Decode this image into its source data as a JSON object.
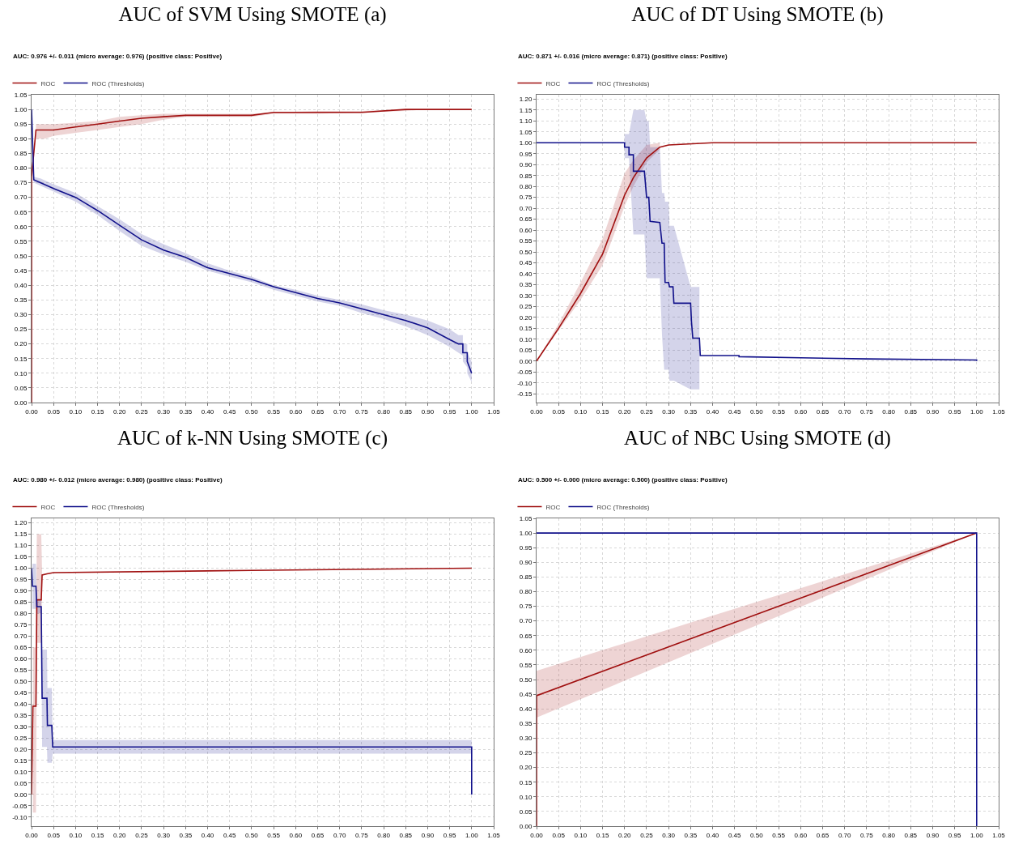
{
  "chart_data": [
    {
      "type": "line",
      "title": "AUC of SVM Using SMOTE (a)",
      "subtitle": "AUC: 0.976 +/- 0.011 (micro average: 0.976) (positive class: Positive)",
      "grid": true,
      "legend": "top left",
      "marker": "none",
      "line_style": "solid",
      "xlim": [
        0,
        1.05
      ],
      "ylim": [
        0,
        1.05
      ],
      "xticks": [
        {
          "value": 0,
          "label": "0.00"
        },
        {
          "value": 0.05,
          "label": "0.05"
        },
        {
          "value": 0.1,
          "label": "0.10"
        },
        {
          "value": 0.15,
          "label": "0.15"
        },
        {
          "value": 0.2,
          "label": "0.20"
        },
        {
          "value": 0.25,
          "label": "0.25"
        },
        {
          "value": 0.3,
          "label": "0.30"
        },
        {
          "value": 0.35,
          "label": "0.35"
        },
        {
          "value": 0.4,
          "label": "0.40"
        },
        {
          "value": 0.45,
          "label": "0.45"
        },
        {
          "value": 0.5,
          "label": "0.50"
        },
        {
          "value": 0.55,
          "label": "0.55"
        },
        {
          "value": 0.6,
          "label": "0.60"
        },
        {
          "value": 0.65,
          "label": "0.65"
        },
        {
          "value": 0.7,
          "label": "0.70"
        },
        {
          "value": 0.75,
          "label": "0.75"
        },
        {
          "value": 0.8,
          "label": "0.80"
        },
        {
          "value": 0.85,
          "label": "0.85"
        },
        {
          "value": 0.9,
          "label": "0.90"
        },
        {
          "value": 0.95,
          "label": "0.95"
        },
        {
          "value": 1,
          "label": "1.00"
        },
        {
          "value": 1.05,
          "label": "1.05"
        }
      ],
      "yticks": [
        {
          "value": 0,
          "label": "0.00"
        },
        {
          "value": 0.05,
          "label": "0.05"
        },
        {
          "value": 0.1,
          "label": "0.10"
        },
        {
          "value": 0.15,
          "label": "0.15"
        },
        {
          "value": 0.2,
          "label": "0.20"
        },
        {
          "value": 0.25,
          "label": "0.25"
        },
        {
          "value": 0.3,
          "label": "0.30"
        },
        {
          "value": 0.35,
          "label": "0.35"
        },
        {
          "value": 0.4,
          "label": "0.40"
        },
        {
          "value": 0.45,
          "label": "0.45"
        },
        {
          "value": 0.5,
          "label": "0.50"
        },
        {
          "value": 0.55,
          "label": "0.55"
        },
        {
          "value": 0.6,
          "label": "0.60"
        },
        {
          "value": 0.65,
          "label": "0.65"
        },
        {
          "value": 0.7,
          "label": "0.70"
        },
        {
          "value": 0.75,
          "label": "0.75"
        },
        {
          "value": 0.8,
          "label": "0.80"
        },
        {
          "value": 0.85,
          "label": "0.85"
        },
        {
          "value": 0.9,
          "label": "0.90"
        },
        {
          "value": 0.95,
          "label": "0.95"
        },
        {
          "value": 1,
          "label": "1.00"
        },
        {
          "value": 1.05,
          "label": "1.05"
        }
      ],
      "series": [
        {
          "name": "ROC",
          "color": "#a01010",
          "x": [
            0,
            0,
            0.01,
            0.03,
            0.05,
            0.1,
            0.15,
            0.2,
            0.25,
            0.3,
            0.35,
            0.45,
            0.5,
            0.55,
            0.65,
            0.75,
            0.85,
            0.9,
            0.95,
            1.0
          ],
          "values": [
            0,
            0.77,
            0.93,
            0.93,
            0.93,
            0.94,
            0.95,
            0.96,
            0.97,
            0.975,
            0.98,
            0.98,
            0.98,
            0.99,
            0.99,
            0.99,
            1.0,
            1.0,
            1.0,
            1.0
          ],
          "lower": [
            null,
            null,
            0.9,
            0.9,
            0.91,
            0.92,
            0.93,
            0.94,
            0.95,
            0.965,
            0.975,
            0.975,
            0.975,
            0.985,
            0.985,
            0.99,
            0.995,
            1.0,
            1.0,
            1.0
          ],
          "upper": [
            null,
            null,
            0.95,
            0.95,
            0.95,
            0.955,
            0.96,
            0.975,
            0.98,
            0.985,
            0.985,
            0.985,
            0.985,
            0.99,
            0.995,
            0.995,
            1.0,
            1.0,
            1.0,
            1.0
          ]
        },
        {
          "name": "ROC (Thresholds)",
          "color": "#10108a",
          "x": [
            0,
            0.005,
            0.02,
            0.05,
            0.1,
            0.15,
            0.2,
            0.25,
            0.3,
            0.35,
            0.4,
            0.45,
            0.5,
            0.55,
            0.6,
            0.65,
            0.7,
            0.75,
            0.8,
            0.85,
            0.9,
            0.95,
            0.97,
            0.98,
            0.98,
            0.99,
            0.99,
            1.0
          ],
          "values": [
            1.0,
            0.76,
            0.75,
            0.73,
            0.7,
            0.655,
            0.605,
            0.555,
            0.52,
            0.495,
            0.46,
            0.44,
            0.42,
            0.395,
            0.375,
            0.355,
            0.34,
            0.32,
            0.3,
            0.28,
            0.255,
            0.215,
            0.2,
            0.2,
            0.17,
            0.17,
            0.14,
            0.1
          ],
          "lower": [
            null,
            0.75,
            0.74,
            0.72,
            0.685,
            0.64,
            0.585,
            0.535,
            0.505,
            0.48,
            0.45,
            0.43,
            0.41,
            0.385,
            0.365,
            0.345,
            0.33,
            0.305,
            0.285,
            0.26,
            0.23,
            0.19,
            0.17,
            0.16,
            0.14,
            0.12,
            0.1,
            0.07
          ],
          "upper": [
            null,
            0.77,
            0.765,
            0.745,
            0.715,
            0.67,
            0.625,
            0.575,
            0.54,
            0.51,
            0.475,
            0.45,
            0.43,
            0.4,
            0.385,
            0.365,
            0.35,
            0.335,
            0.315,
            0.3,
            0.28,
            0.25,
            0.23,
            0.23,
            0.2,
            0.2,
            0.17,
            0.14
          ]
        }
      ]
    },
    {
      "type": "line",
      "title": "AUC of DT Using SMOTE (b)",
      "subtitle": "AUC: 0.871 +/- 0.016 (micro average: 0.871) (positive class: Positive)",
      "grid": true,
      "legend": "top left",
      "marker": "none",
      "line_style": "solid",
      "xlim": [
        0,
        1.05
      ],
      "ylim": [
        -0.19,
        1.22
      ],
      "xticks": [
        {
          "value": 0,
          "label": "0.00"
        },
        {
          "value": 0.05,
          "label": "0.05"
        },
        {
          "value": 0.1,
          "label": "0.10"
        },
        {
          "value": 0.15,
          "label": "0.15"
        },
        {
          "value": 0.2,
          "label": "0.20"
        },
        {
          "value": 0.25,
          "label": "0.25"
        },
        {
          "value": 0.3,
          "label": "0.30"
        },
        {
          "value": 0.35,
          "label": "0.35"
        },
        {
          "value": 0.4,
          "label": "0.40"
        },
        {
          "value": 0.45,
          "label": "0.45"
        },
        {
          "value": 0.5,
          "label": "0.50"
        },
        {
          "value": 0.55,
          "label": "0.55"
        },
        {
          "value": 0.6,
          "label": "0.60"
        },
        {
          "value": 0.65,
          "label": "0.65"
        },
        {
          "value": 0.7,
          "label": "0.70"
        },
        {
          "value": 0.75,
          "label": "0.75"
        },
        {
          "value": 0.8,
          "label": "0.80"
        },
        {
          "value": 0.85,
          "label": "0.85"
        },
        {
          "value": 0.9,
          "label": "0.90"
        },
        {
          "value": 0.95,
          "label": "0.95"
        },
        {
          "value": 1,
          "label": "1.00"
        },
        {
          "value": 1.05,
          "label": "1.05"
        }
      ],
      "yticks": [
        {
          "value": -0.15,
          "label": "-0.15"
        },
        {
          "value": -0.1,
          "label": "-0.10"
        },
        {
          "value": -0.05,
          "label": "-0.05"
        },
        {
          "value": 0,
          "label": "0.00"
        },
        {
          "value": 0.05,
          "label": "0.05"
        },
        {
          "value": 0.1,
          "label": "0.10"
        },
        {
          "value": 0.15,
          "label": "0.15"
        },
        {
          "value": 0.2,
          "label": "0.20"
        },
        {
          "value": 0.25,
          "label": "0.25"
        },
        {
          "value": 0.3,
          "label": "0.30"
        },
        {
          "value": 0.35,
          "label": "0.35"
        },
        {
          "value": 0.4,
          "label": "0.40"
        },
        {
          "value": 0.45,
          "label": "0.45"
        },
        {
          "value": 0.5,
          "label": "0.50"
        },
        {
          "value": 0.55,
          "label": "0.55"
        },
        {
          "value": 0.6,
          "label": "0.60"
        },
        {
          "value": 0.65,
          "label": "0.65"
        },
        {
          "value": 0.7,
          "label": "0.70"
        },
        {
          "value": 0.75,
          "label": "0.75"
        },
        {
          "value": 0.8,
          "label": "0.80"
        },
        {
          "value": 0.85,
          "label": "0.85"
        },
        {
          "value": 0.9,
          "label": "0.90"
        },
        {
          "value": 0.95,
          "label": "0.95"
        },
        {
          "value": 1,
          "label": "1.00"
        },
        {
          "value": 1.05,
          "label": "1.05"
        },
        {
          "value": 1.1,
          "label": "1.10"
        },
        {
          "value": 1.15,
          "label": "1.15"
        },
        {
          "value": 1.2,
          "label": "1.20"
        }
      ],
      "series": [
        {
          "name": "ROC",
          "color": "#a01010",
          "x": [
            0,
            0.05,
            0.1,
            0.15,
            0.2,
            0.22,
            0.25,
            0.28,
            0.3,
            0.4,
            0.6,
            0.8,
            1.0
          ],
          "values": [
            0,
            0.15,
            0.31,
            0.49,
            0.76,
            0.84,
            0.93,
            0.98,
            0.99,
            1.0,
            1.0,
            1.0,
            1.0
          ],
          "lower": [
            0,
            0.14,
            0.28,
            0.44,
            0.71,
            0.8,
            0.91,
            0.97,
            null,
            null,
            null,
            null,
            null
          ],
          "upper": [
            0,
            0.17,
            0.36,
            0.56,
            0.86,
            0.92,
            0.99,
            1.0,
            null,
            null,
            null,
            null,
            null
          ]
        },
        {
          "name": "ROC (Thresholds)",
          "color": "#10108a",
          "x": [
            0,
            0.2,
            0.2,
            0.21,
            0.21,
            0.22,
            0.22,
            0.245,
            0.25,
            0.255,
            0.258,
            0.28,
            0.285,
            0.29,
            0.292,
            0.3,
            0.302,
            0.31,
            0.312,
            0.35,
            0.352,
            0.355,
            0.37,
            0.372,
            0.46,
            0.46,
            0.6,
            0.75,
            1.0,
            1.0
          ],
          "values": [
            1,
            1,
            0.98,
            0.98,
            0.945,
            0.945,
            0.87,
            0.87,
            0.75,
            0.75,
            0.64,
            0.635,
            0.54,
            0.54,
            0.36,
            0.36,
            0.34,
            0.34,
            0.265,
            0.265,
            0.18,
            0.105,
            0.105,
            0.025,
            0.025,
            0.02,
            0.015,
            0.01,
            0.005,
            0
          ],
          "lower": [
            null,
            0.93,
            0.93,
            0.93,
            0.93,
            0.58,
            0.58,
            0.58,
            0.38,
            0.38,
            0.38,
            0.38,
            0.12,
            -0.04,
            -0.04,
            -0.04,
            -0.09,
            -0.09,
            -0.09,
            -0.13,
            -0.13,
            -0.13,
            -0.13,
            null,
            null,
            null,
            null,
            null,
            null,
            null
          ],
          "upper": [
            null,
            1.04,
            1.04,
            1.04,
            1.04,
            1.15,
            1.15,
            1.15,
            1.1,
            1.1,
            0.98,
            0.98,
            0.77,
            0.77,
            0.73,
            0.73,
            0.62,
            0.62,
            0.62,
            0.34,
            0.34,
            0.34,
            0.34,
            null,
            null,
            null,
            null,
            null,
            null,
            null
          ]
        }
      ]
    },
    {
      "type": "line",
      "title": "AUC of k-NN Using SMOTE (c)",
      "subtitle": "AUC: 0.980 +/- 0.012 (micro average: 0.980) (positive class: Positive)",
      "grid": true,
      "legend": "top left",
      "marker": "none",
      "line_style": "solid",
      "xlim": [
        0,
        1.05
      ],
      "ylim": [
        -0.14,
        1.22
      ],
      "xticks": [
        {
          "value": 0,
          "label": "0.00"
        },
        {
          "value": 0.05,
          "label": "0.05"
        },
        {
          "value": 0.1,
          "label": "0.10"
        },
        {
          "value": 0.15,
          "label": "0.15"
        },
        {
          "value": 0.2,
          "label": "0.20"
        },
        {
          "value": 0.25,
          "label": "0.25"
        },
        {
          "value": 0.3,
          "label": "0.30"
        },
        {
          "value": 0.35,
          "label": "0.35"
        },
        {
          "value": 0.4,
          "label": "0.40"
        },
        {
          "value": 0.45,
          "label": "0.45"
        },
        {
          "value": 0.5,
          "label": "0.50"
        },
        {
          "value": 0.55,
          "label": "0.55"
        },
        {
          "value": 0.6,
          "label": "0.60"
        },
        {
          "value": 0.65,
          "label": "0.65"
        },
        {
          "value": 0.7,
          "label": "0.70"
        },
        {
          "value": 0.75,
          "label": "0.75"
        },
        {
          "value": 0.8,
          "label": "0.80"
        },
        {
          "value": 0.85,
          "label": "0.85"
        },
        {
          "value": 0.9,
          "label": "0.90"
        },
        {
          "value": 0.95,
          "label": "0.95"
        },
        {
          "value": 1,
          "label": "1.00"
        },
        {
          "value": 1.05,
          "label": "1.05"
        }
      ],
      "yticks": [
        {
          "value": -0.1,
          "label": "-0.10"
        },
        {
          "value": -0.05,
          "label": "-0.05"
        },
        {
          "value": 0,
          "label": "0.00"
        },
        {
          "value": 0.05,
          "label": "0.05"
        },
        {
          "value": 0.1,
          "label": "0.10"
        },
        {
          "value": 0.15,
          "label": "0.15"
        },
        {
          "value": 0.2,
          "label": "0.20"
        },
        {
          "value": 0.25,
          "label": "0.25"
        },
        {
          "value": 0.3,
          "label": "0.30"
        },
        {
          "value": 0.35,
          "label": "0.35"
        },
        {
          "value": 0.4,
          "label": "0.40"
        },
        {
          "value": 0.45,
          "label": "0.45"
        },
        {
          "value": 0.5,
          "label": "0.50"
        },
        {
          "value": 0.55,
          "label": "0.55"
        },
        {
          "value": 0.6,
          "label": "0.60"
        },
        {
          "value": 0.65,
          "label": "0.65"
        },
        {
          "value": 0.7,
          "label": "0.70"
        },
        {
          "value": 0.75,
          "label": "0.75"
        },
        {
          "value": 0.8,
          "label": "0.80"
        },
        {
          "value": 0.85,
          "label": "0.85"
        },
        {
          "value": 0.9,
          "label": "0.90"
        },
        {
          "value": 0.95,
          "label": "0.95"
        },
        {
          "value": 1,
          "label": "1.00"
        },
        {
          "value": 1.05,
          "label": "1.05"
        },
        {
          "value": 1.1,
          "label": "1.10"
        },
        {
          "value": 1.15,
          "label": "1.15"
        },
        {
          "value": 1.2,
          "label": "1.20"
        }
      ],
      "series": [
        {
          "name": "ROC",
          "color": "#a01010",
          "x": [
            0,
            0.003,
            0.01,
            0.012,
            0.022,
            0.024,
            0.035,
            0.05,
            0.5,
            1.0
          ],
          "values": [
            0,
            0.39,
            0.39,
            0.86,
            0.86,
            0.97,
            0.975,
            0.98,
            0.99,
            1.0
          ],
          "lower": [
            null,
            -0.08,
            -0.08,
            0.67,
            0.67,
            0.96,
            null,
            null,
            null,
            null
          ],
          "upper": [
            null,
            0.65,
            0.65,
            1.15,
            1.15,
            0.98,
            null,
            null,
            null,
            null
          ]
        },
        {
          "name": "ROC (Thresholds)",
          "color": "#10108a",
          "x": [
            0,
            0.002,
            0.01,
            0.012,
            0.022,
            0.024,
            0.035,
            0.036,
            0.046,
            0.048,
            1.0,
            1.0
          ],
          "values": [
            1.0,
            0.92,
            0.92,
            0.83,
            0.83,
            0.425,
            0.425,
            0.305,
            0.305,
            0.21,
            0.21,
            0
          ],
          "lower": [
            null,
            0.82,
            0.82,
            0.8,
            0.8,
            0.21,
            0.21,
            0.14,
            0.14,
            0.18,
            0.18,
            null
          ],
          "upper": [
            null,
            1.02,
            1.02,
            0.86,
            0.86,
            0.64,
            0.64,
            0.47,
            0.47,
            0.24,
            0.24,
            null
          ]
        }
      ]
    },
    {
      "type": "line",
      "title": "AUC of NBC Using SMOTE (d)",
      "subtitle": "AUC: 0.500 +/- 0.000 (micro average: 0.500) (positive class: Positive)",
      "grid": true,
      "legend": "top left",
      "marker": "none",
      "line_style": "solid",
      "xlim": [
        0,
        1.05
      ],
      "ylim": [
        0,
        1.05
      ],
      "xticks": [
        {
          "value": 0,
          "label": "0.00"
        },
        {
          "value": 0.05,
          "label": "0.05"
        },
        {
          "value": 0.1,
          "label": "0.10"
        },
        {
          "value": 0.15,
          "label": "0.15"
        },
        {
          "value": 0.2,
          "label": "0.20"
        },
        {
          "value": 0.25,
          "label": "0.25"
        },
        {
          "value": 0.3,
          "label": "0.30"
        },
        {
          "value": 0.35,
          "label": "0.35"
        },
        {
          "value": 0.4,
          "label": "0.40"
        },
        {
          "value": 0.45,
          "label": "0.45"
        },
        {
          "value": 0.5,
          "label": "0.50"
        },
        {
          "value": 0.55,
          "label": "0.55"
        },
        {
          "value": 0.6,
          "label": "0.60"
        },
        {
          "value": 0.65,
          "label": "0.65"
        },
        {
          "value": 0.7,
          "label": "0.70"
        },
        {
          "value": 0.75,
          "label": "0.75"
        },
        {
          "value": 0.8,
          "label": "0.80"
        },
        {
          "value": 0.85,
          "label": "0.85"
        },
        {
          "value": 0.9,
          "label": "0.90"
        },
        {
          "value": 0.95,
          "label": "0.95"
        },
        {
          "value": 1,
          "label": "1.00"
        },
        {
          "value": 1.05,
          "label": "1.05"
        }
      ],
      "yticks": [
        {
          "value": 0,
          "label": "0.00"
        },
        {
          "value": 0.05,
          "label": "0.05"
        },
        {
          "value": 0.1,
          "label": "0.10"
        },
        {
          "value": 0.15,
          "label": "0.15"
        },
        {
          "value": 0.2,
          "label": "0.20"
        },
        {
          "value": 0.25,
          "label": "0.25"
        },
        {
          "value": 0.3,
          "label": "0.30"
        },
        {
          "value": 0.35,
          "label": "0.35"
        },
        {
          "value": 0.4,
          "label": "0.40"
        },
        {
          "value": 0.45,
          "label": "0.45"
        },
        {
          "value": 0.5,
          "label": "0.50"
        },
        {
          "value": 0.55,
          "label": "0.55"
        },
        {
          "value": 0.6,
          "label": "0.60"
        },
        {
          "value": 0.65,
          "label": "0.65"
        },
        {
          "value": 0.7,
          "label": "0.70"
        },
        {
          "value": 0.75,
          "label": "0.75"
        },
        {
          "value": 0.8,
          "label": "0.80"
        },
        {
          "value": 0.85,
          "label": "0.85"
        },
        {
          "value": 0.9,
          "label": "0.90"
        },
        {
          "value": 0.95,
          "label": "0.95"
        },
        {
          "value": 1,
          "label": "1.00"
        },
        {
          "value": 1.05,
          "label": "1.05"
        }
      ],
      "series": [
        {
          "name": "ROC",
          "color": "#a01010",
          "x": [
            0,
            0,
            1
          ],
          "values": [
            0,
            0.445,
            1
          ],
          "lower": [
            null,
            0.37,
            1
          ],
          "upper": [
            null,
            0.53,
            1
          ]
        },
        {
          "name": "ROC (Thresholds)",
          "color": "#10108a",
          "x": [
            0,
            1,
            1
          ],
          "values": [
            1,
            1,
            0
          ]
        }
      ]
    }
  ]
}
